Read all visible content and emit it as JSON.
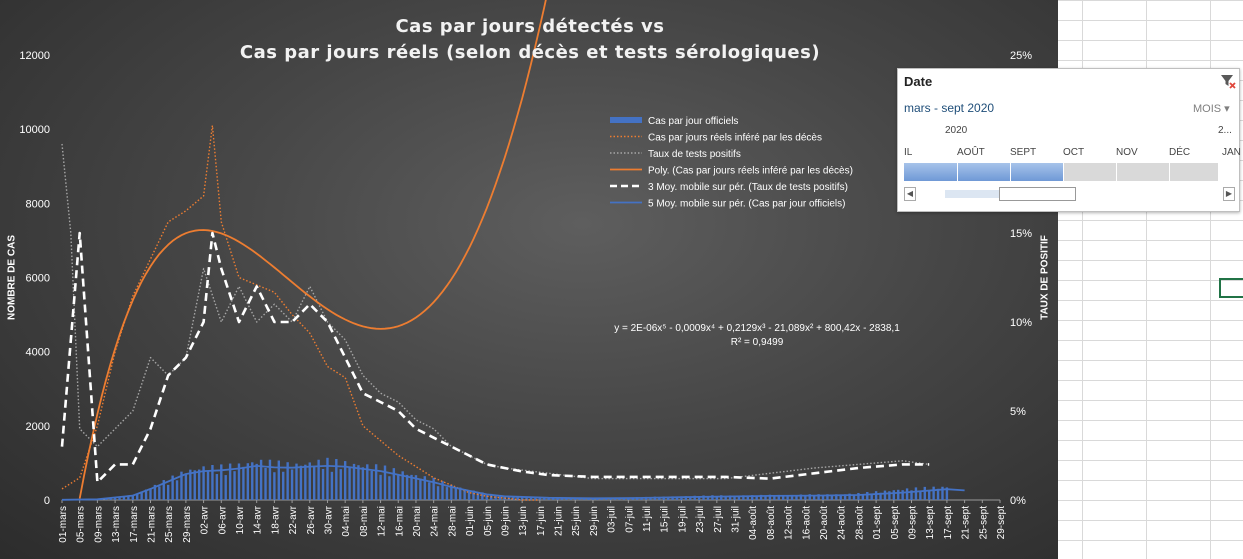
{
  "slicer": {
    "title": "Date",
    "range": "mars - sept 2020",
    "level": "MOIS ▾",
    "year": "2020",
    "year_next": "2...",
    "months": [
      "IL",
      "AOÛT",
      "SEPT",
      "OCT",
      "NOV",
      "DÉC",
      "JAN"
    ],
    "selected_months": 3,
    "clear_icon": "clear-filter-icon"
  },
  "chart_data": {
    "type": "bar+line",
    "title": "Cas par jours détectés vs",
    "subtitle": "Cas par jours réels (selon décès et tests sérologiques)",
    "ylabel": "NOMBRE DE CAS",
    "ylabel_right": "TAUX DE POSITIF",
    "ylim": [
      0,
      12000
    ],
    "ylim_right": [
      0,
      0.25
    ],
    "yticks": [
      "0",
      "2000",
      "4000",
      "6000",
      "8000",
      "10000",
      "12000"
    ],
    "yticks_right": [
      "0%",
      "5%",
      "10%",
      "15%",
      "20%",
      "25%"
    ],
    "x_tick_labels": [
      "01-mars",
      "05-mars",
      "09-mars",
      "13-mars",
      "17-mars",
      "21-mars",
      "25-mars",
      "29-mars",
      "02-avr",
      "06-avr",
      "10-avr",
      "14-avr",
      "18-avr",
      "22-avr",
      "26-avr",
      "30-avr",
      "04-mai",
      "08-mai",
      "12-mai",
      "16-mai",
      "20-mai",
      "24-mai",
      "28-mai",
      "01-juin",
      "05-juin",
      "09-juin",
      "13-juin",
      "17-juin",
      "21-juin",
      "25-juin",
      "29-juin",
      "03-juil",
      "07-juil",
      "11-juil",
      "15-juil",
      "19-juil",
      "23-juil",
      "27-juil",
      "31-juil",
      "04-août",
      "08-août",
      "12-août",
      "16-août",
      "20-août",
      "24-août",
      "28-août",
      "01-sept",
      "05-sept",
      "09-sept",
      "13-sept",
      "17-sept",
      "21-sept",
      "25-sept",
      "29-sept"
    ],
    "grid": false,
    "legend_position": "top-right",
    "annotation_equation": "y = 2E-06x⁵ - 0,0009x⁴ + 0,2129x³ - 21,089x² + 800,42x - 2838,1",
    "annotation_r2": "R² = 0,9499",
    "series": [
      {
        "name": "Cas par jour officiels",
        "kind": "bar",
        "axis": "left",
        "color": "#4472c4",
        "x": [
          0,
          4,
          8,
          12,
          16,
          20,
          24,
          28,
          32,
          36,
          40,
          44,
          48,
          52,
          56,
          60,
          64,
          68,
          72,
          76,
          80,
          84,
          88,
          92,
          96,
          100,
          104,
          108,
          112,
          116,
          120,
          124,
          128,
          132,
          136,
          140,
          144,
          148,
          152,
          156,
          160,
          164,
          168,
          172,
          176,
          180,
          184,
          188,
          192,
          196,
          200
        ],
        "values": [
          5,
          10,
          20,
          60,
          120,
          300,
          500,
          700,
          800,
          800,
          850,
          950,
          900,
          850,
          900,
          950,
          900,
          850,
          800,
          700,
          600,
          500,
          350,
          250,
          150,
          100,
          80,
          60,
          50,
          40,
          40,
          50,
          60,
          70,
          80,
          90,
          100,
          110,
          110,
          110,
          120,
          120,
          130,
          130,
          140,
          160,
          200,
          240,
          280,
          300,
          320
        ]
      },
      {
        "name": "Cas par jours réels inféré par les décès",
        "kind": "line",
        "style": "dotted",
        "axis": "left",
        "color": "#ed7d31",
        "x": [
          0,
          4,
          8,
          12,
          16,
          20,
          24,
          28,
          32,
          34,
          36,
          40,
          44,
          48,
          52,
          56,
          60,
          64,
          68,
          72,
          76,
          80,
          84,
          88,
          92,
          96,
          100,
          104,
          108
        ],
        "values": [
          300,
          600,
          2000,
          4000,
          5500,
          6500,
          7500,
          7800,
          8200,
          10100,
          7500,
          6000,
          5800,
          5600,
          5000,
          4500,
          3600,
          3300,
          2000,
          1600,
          1200,
          900,
          600,
          400,
          200,
          100,
          50,
          0,
          0
        ]
      },
      {
        "name": "Taux de tests positifs",
        "kind": "line",
        "style": "dotted",
        "axis": "right",
        "color": "#a6a6a6",
        "x": [
          0,
          2,
          4,
          8,
          12,
          16,
          20,
          24,
          28,
          32,
          36,
          40,
          44,
          48,
          52,
          56,
          60,
          64,
          68,
          72,
          76,
          80,
          84,
          88,
          92,
          96,
          100,
          110,
          120,
          130,
          140,
          150,
          160,
          170,
          180,
          190,
          196
        ],
        "values": [
          0.2,
          0.15,
          0.04,
          0.03,
          0.04,
          0.05,
          0.08,
          0.07,
          0.08,
          0.13,
          0.1,
          0.12,
          0.1,
          0.11,
          0.1,
          0.12,
          0.1,
          0.09,
          0.07,
          0.06,
          0.055,
          0.045,
          0.04,
          0.03,
          0.025,
          0.02,
          0.018,
          0.015,
          0.012,
          0.012,
          0.012,
          0.012,
          0.015,
          0.018,
          0.02,
          0.022,
          0.02
        ]
      },
      {
        "name": "Poly. (Cas par jours réels inféré par les décès)",
        "kind": "line",
        "style": "solid",
        "axis": "left",
        "color": "#ed7d31",
        "fit": "polynomial-5"
      },
      {
        "name": "3 Moy. mobile sur pér. (Taux de tests positifs)",
        "kind": "line",
        "style": "dashed",
        "axis": "right",
        "color": "#ffffff",
        "x": [
          0,
          4,
          8,
          12,
          16,
          20,
          24,
          28,
          32,
          34,
          36,
          40,
          44,
          48,
          52,
          56,
          60,
          64,
          68,
          72,
          76,
          80,
          84,
          88,
          92,
          96,
          100,
          104,
          110,
          120,
          130,
          140,
          150,
          160,
          170,
          180,
          190,
          196
        ],
        "values": [
          0.03,
          0.15,
          0.01,
          0.02,
          0.02,
          0.04,
          0.07,
          0.08,
          0.1,
          0.15,
          0.13,
          0.1,
          0.12,
          0.1,
          0.1,
          0.11,
          0.1,
          0.08,
          0.06,
          0.055,
          0.05,
          0.04,
          0.035,
          0.03,
          0.025,
          0.02,
          0.018,
          0.016,
          0.014,
          0.013,
          0.013,
          0.013,
          0.013,
          0.012,
          0.015,
          0.018,
          0.02,
          0.02
        ]
      },
      {
        "name": "5 Moy. mobile sur pér. (Cas par jour officiels)",
        "kind": "line",
        "style": "solid",
        "axis": "left",
        "color": "#4472c4",
        "x": [
          0,
          8,
          16,
          20,
          24,
          28,
          32,
          36,
          40,
          44,
          48,
          52,
          56,
          60,
          64,
          68,
          72,
          76,
          80,
          84,
          88,
          92,
          96,
          100,
          110,
          120,
          130,
          140,
          150,
          160,
          170,
          180,
          190,
          200,
          204
        ],
        "values": [
          5,
          20,
          120,
          300,
          500,
          700,
          780,
          800,
          850,
          920,
          880,
          870,
          900,
          920,
          900,
          840,
          780,
          680,
          580,
          480,
          350,
          250,
          150,
          100,
          60,
          45,
          55,
          75,
          95,
          110,
          120,
          135,
          200,
          290,
          260
        ]
      }
    ]
  }
}
